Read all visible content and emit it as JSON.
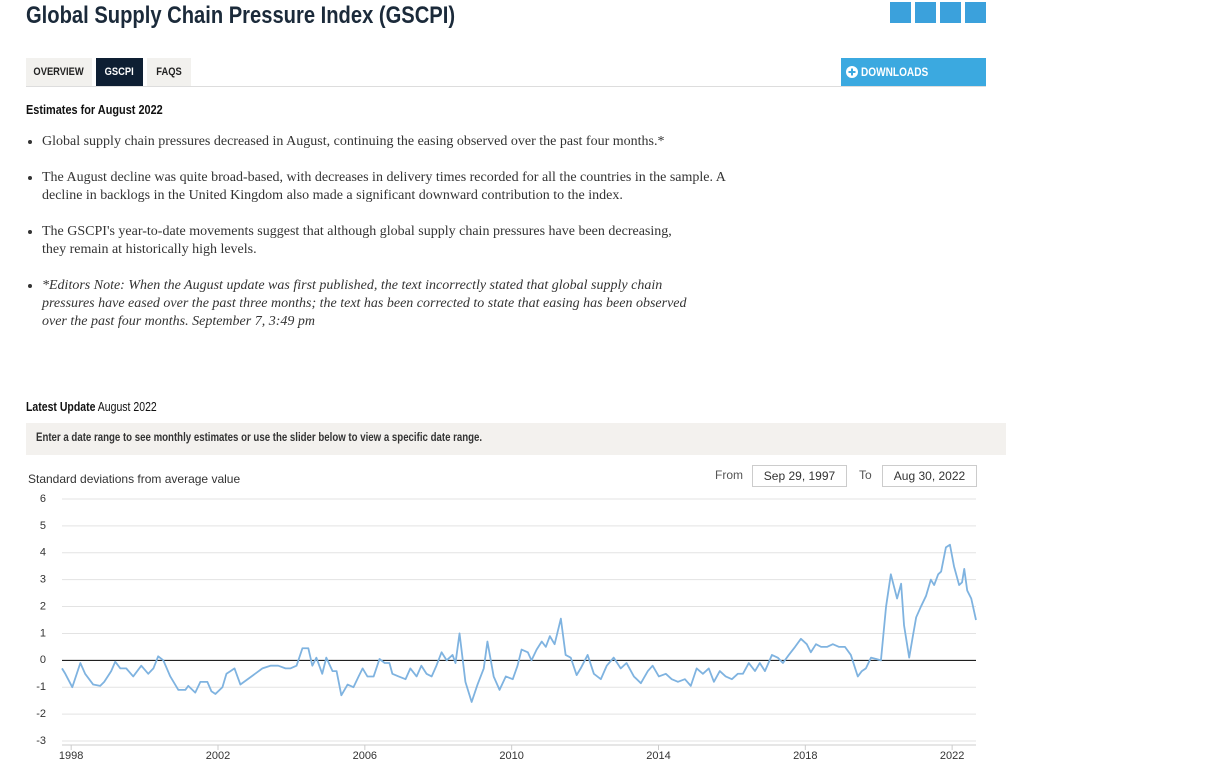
{
  "header": {
    "title": "Global Supply Chain Pressure Index (GSCPI)"
  },
  "tabs": [
    "OVERVIEW",
    "GSCPI",
    "FAQS"
  ],
  "downloads": "DOWNLOADS",
  "estimates_heading": "Estimates for August 2022",
  "bullets": [
    "Global supply chain pressures decreased in August, continuing the easing observed over the past four months.*",
    "The August decline was quite broad-based, with decreases in delivery times recorded for all the countries in the sample. A decline in backlogs in the United Kingdom also made a significant downward contribution to the index.",
    "The GSCPI's year-to-date movements suggest that although global supply chain pressures have been decreasing, they remain at historically high levels.",
    "*Editors Note: When the August update was first published, the text incorrectly stated that global supply chain pressures have eased over the past three months; the text has been corrected to state that easing has been observed over the past four months. September 7, 3:49 pm"
  ],
  "latest_update": {
    "label": "Latest Update",
    "date": "August 2022"
  },
  "instructions": "Enter a date range to see monthly estimates or use the slider below to view a specific date range.",
  "date_range": {
    "from_label": "From",
    "from": "Sep 29, 1997",
    "to_label": "To",
    "to": "Aug 30, 2022"
  },
  "chart_data": {
    "type": "line",
    "y_label": "Standard deviations from average value",
    "color": "#7fb3e0",
    "xlim": [
      1997.75,
      2022.65
    ],
    "xticks": [
      1998,
      2002,
      2006,
      2010,
      2014,
      2018,
      2022
    ],
    "ylim": [
      -3,
      6
    ],
    "yticks": [
      -3,
      -2,
      -1,
      0,
      1,
      2,
      3,
      4,
      5,
      6
    ],
    "grid": true,
    "x": [
      1997.75,
      1997.84,
      1998.03,
      1998.25,
      1998.38,
      1998.6,
      1998.79,
      1998.9,
      1999.09,
      1999.2,
      1999.34,
      1999.5,
      1999.69,
      1999.91,
      2000.1,
      2000.24,
      2000.37,
      2000.51,
      2000.7,
      2000.92,
      2001.11,
      2001.19,
      2001.38,
      2001.52,
      2001.71,
      2001.82,
      2001.93,
      2002.12,
      2002.23,
      2002.34,
      2002.45,
      2002.61,
      2002.91,
      2003.21,
      2003.43,
      2003.64,
      2003.84,
      2003.97,
      2004.14,
      2004.3,
      2004.46,
      2004.57,
      2004.68,
      2004.84,
      2004.95,
      2005.12,
      2005.23,
      2005.36,
      2005.53,
      2005.69,
      2005.83,
      2005.94,
      2006.07,
      2006.24,
      2006.4,
      2006.54,
      2006.67,
      2006.75,
      2006.92,
      2007.11,
      2007.24,
      2007.41,
      2007.54,
      2007.68,
      2007.82,
      2007.95,
      2008.09,
      2008.23,
      2008.39,
      2008.47,
      2008.58,
      2008.74,
      2008.91,
      2009.07,
      2009.24,
      2009.34,
      2009.51,
      2009.67,
      2009.84,
      2010.03,
      2010.16,
      2010.27,
      2010.44,
      2010.54,
      2010.68,
      2010.82,
      2010.93,
      2011.04,
      2011.17,
      2011.34,
      2011.47,
      2011.61,
      2011.77,
      2011.88,
      2012.07,
      2012.24,
      2012.43,
      2012.59,
      2012.78,
      2012.97,
      2013.13,
      2013.33,
      2013.52,
      2013.71,
      2013.84,
      2014.01,
      2014.2,
      2014.36,
      2014.53,
      2014.72,
      2014.88,
      2015.04,
      2015.21,
      2015.37,
      2015.51,
      2015.67,
      2015.83,
      2016.0,
      2016.16,
      2016.3,
      2016.46,
      2016.63,
      2016.76,
      2016.9,
      2017.09,
      2017.25,
      2017.39,
      2017.55,
      2017.72,
      2017.88,
      2018.04,
      2018.15,
      2018.29,
      2018.43,
      2018.59,
      2018.75,
      2018.92,
      2019.08,
      2019.24,
      2019.43,
      2019.54,
      2019.65,
      2019.79,
      2019.93,
      2020.06,
      2020.2,
      2020.33,
      2020.5,
      2020.61,
      2020.69,
      2020.83,
      2020.93,
      2021.02,
      2021.15,
      2021.29,
      2021.42,
      2021.51,
      2021.62,
      2021.7,
      2021.83,
      2021.94,
      2022.05,
      2022.19,
      2022.27,
      2022.33,
      2022.41,
      2022.52,
      2022.65
    ],
    "values": [
      -0.3,
      -0.5,
      -1.0,
      -0.1,
      -0.5,
      -0.9,
      -0.95,
      -0.8,
      -0.4,
      -0.05,
      -0.3,
      -0.3,
      -0.6,
      -0.2,
      -0.5,
      -0.3,
      0.15,
      0.0,
      -0.6,
      -1.1,
      -1.1,
      -0.95,
      -1.2,
      -0.8,
      -0.8,
      -1.15,
      -1.25,
      -1.0,
      -0.5,
      -0.4,
      -0.3,
      -0.9,
      -0.6,
      -0.3,
      -0.2,
      -0.2,
      -0.3,
      -0.3,
      -0.2,
      0.45,
      0.45,
      -0.2,
      0.1,
      -0.5,
      0.1,
      -0.4,
      -0.4,
      -1.3,
      -0.9,
      -1.0,
      -0.6,
      -0.3,
      -0.6,
      -0.6,
      0.05,
      -0.1,
      -0.1,
      -0.5,
      -0.6,
      -0.7,
      -0.3,
      -0.6,
      -0.2,
      -0.5,
      -0.6,
      -0.2,
      0.3,
      0.0,
      0.2,
      -0.1,
      1.0,
      -0.8,
      -1.55,
      -0.9,
      -0.3,
      0.7,
      -0.6,
      -1.1,
      -0.6,
      -0.7,
      -0.2,
      0.4,
      0.3,
      0.0,
      0.4,
      0.7,
      0.5,
      0.9,
      0.6,
      1.55,
      0.2,
      0.1,
      -0.55,
      -0.3,
      0.2,
      -0.5,
      -0.7,
      -0.2,
      0.1,
      -0.3,
      -0.1,
      -0.6,
      -0.85,
      -0.4,
      -0.2,
      -0.6,
      -0.5,
      -0.7,
      -0.8,
      -0.7,
      -0.95,
      -0.3,
      -0.5,
      -0.3,
      -0.8,
      -0.4,
      -0.6,
      -0.7,
      -0.5,
      -0.5,
      -0.1,
      -0.4,
      -0.1,
      -0.4,
      0.2,
      0.1,
      -0.1,
      0.2,
      0.5,
      0.8,
      0.6,
      0.3,
      0.6,
      0.5,
      0.5,
      0.6,
      0.5,
      0.5,
      0.2,
      -0.6,
      -0.4,
      -0.3,
      0.1,
      0.05,
      0.0,
      2.0,
      3.2,
      2.3,
      2.85,
      1.3,
      0.1,
      0.9,
      1.6,
      2.0,
      2.4,
      3.0,
      2.8,
      3.2,
      3.3,
      4.2,
      4.3,
      3.5,
      2.8,
      2.9,
      3.4,
      2.6,
      2.3,
      1.5
    ]
  }
}
